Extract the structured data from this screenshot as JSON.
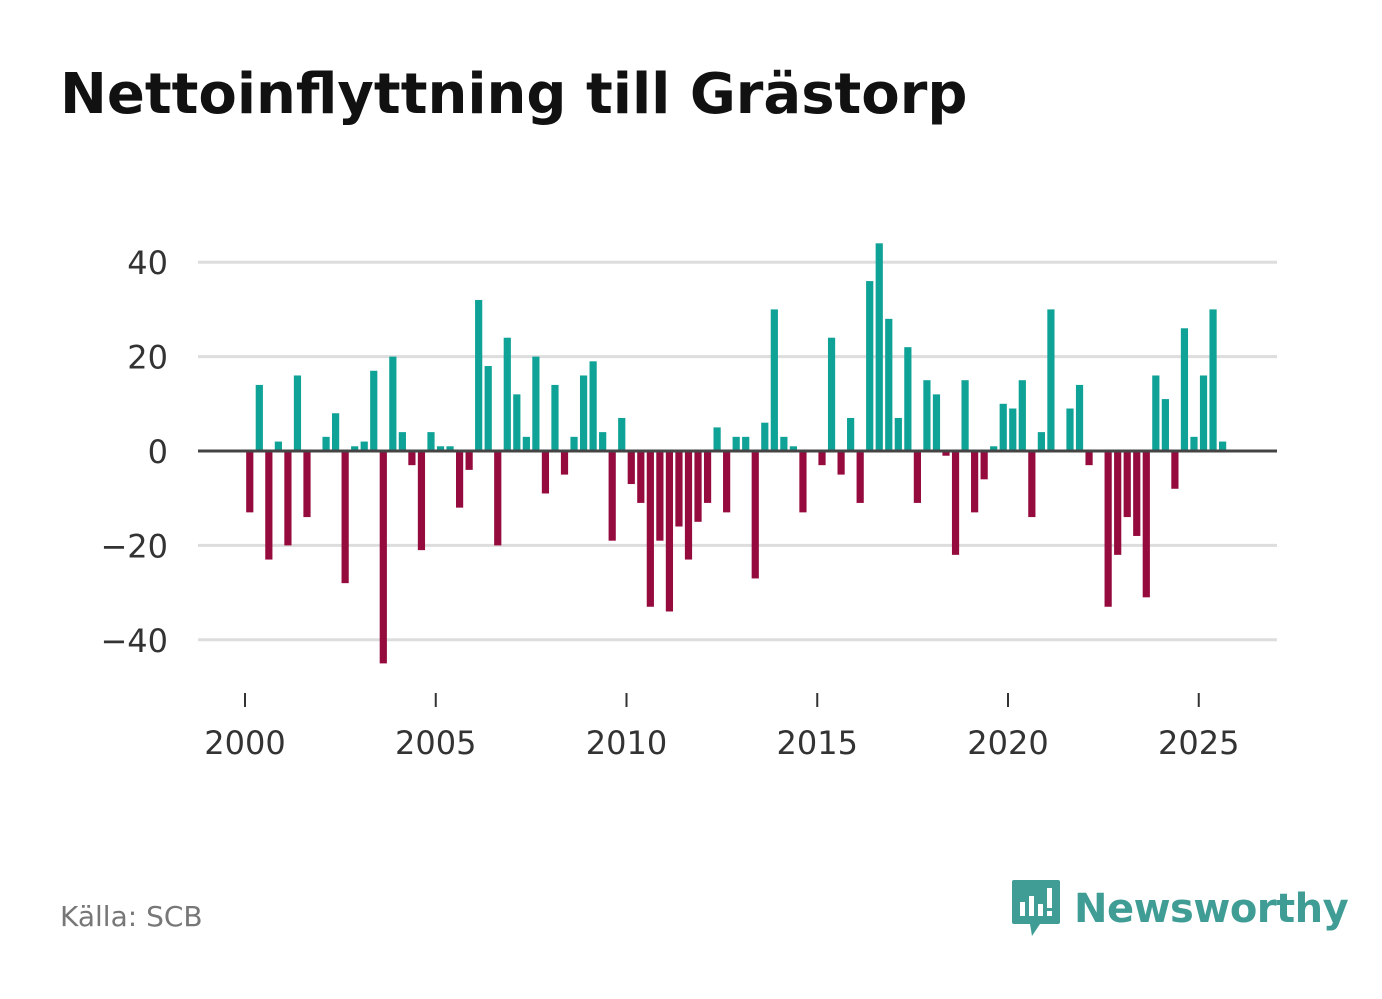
{
  "chart_data": {
    "type": "bar",
    "title": "Nettoinflyttning till Grästorp",
    "source": "Källa: SCB",
    "xlabel": "",
    "ylabel": "",
    "ylim": [
      -49,
      44
    ],
    "xlim": [
      1999.7,
      2026.4
    ],
    "yticks": [
      40,
      20,
      0,
      -20,
      -40
    ],
    "ytick_labels": [
      "40",
      "20",
      "0",
      "−20",
      "−40"
    ],
    "xticks": [
      2000,
      2005,
      2010,
      2015,
      2020,
      2025
    ],
    "xtick_labels": [
      "2000",
      "2005",
      "2010",
      "2015",
      "2020",
      "2025"
    ],
    "grid": true,
    "colors": {
      "positive": "#0fa297",
      "negative": "#960b3e",
      "grid": "#dddddd",
      "zero": "#444444"
    },
    "x_start": 2000.125,
    "x_step": 0.25,
    "values": [
      -13,
      14,
      -23,
      2,
      -20,
      16,
      -14,
      0,
      3,
      8,
      -28,
      1,
      2,
      17,
      -45,
      20,
      4,
      -3,
      -21,
      4,
      1,
      1,
      -12,
      -4,
      32,
      18,
      -20,
      24,
      12,
      3,
      20,
      -9,
      14,
      -5,
      3,
      16,
      19,
      4,
      -19,
      7,
      -7,
      -11,
      -33,
      -19,
      -34,
      -16,
      -23,
      -15,
      -11,
      5,
      -13,
      3,
      3,
      -27,
      6,
      30,
      3,
      1,
      -13,
      0,
      -3,
      24,
      -5,
      7,
      -11,
      36,
      44,
      28,
      7,
      22,
      -11,
      15,
      12,
      -1,
      -22,
      15,
      -13,
      -6,
      1,
      10,
      9,
      15,
      -14,
      4,
      30,
      0,
      9,
      14,
      -3,
      0,
      -33,
      -22,
      -14,
      -18,
      -31,
      16,
      11,
      -8,
      26,
      3,
      16,
      30,
      2
    ]
  },
  "brand": {
    "name": "Newsworthy",
    "logo_icon": "newsworthy-logo-icon"
  }
}
